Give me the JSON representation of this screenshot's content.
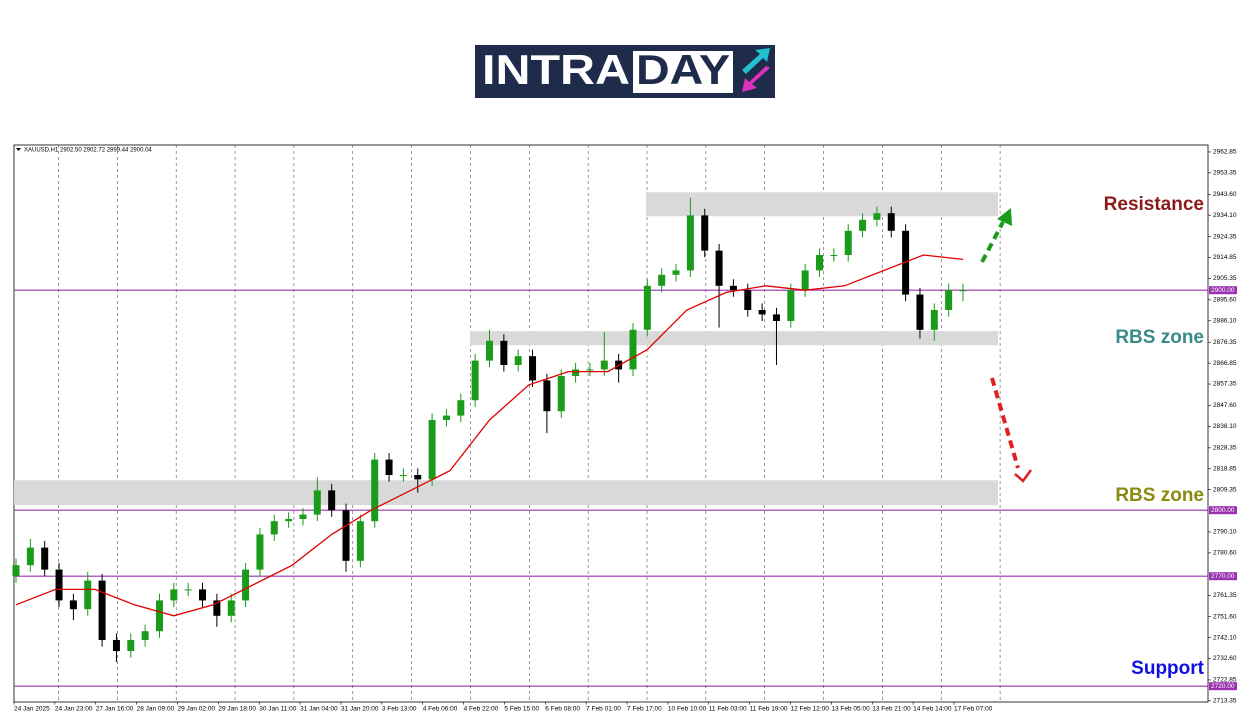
{
  "logo": {
    "left": "INTRA",
    "right": "DAY"
  },
  "chart_data": {
    "type": "candlestick",
    "title": "XAUUSD,H1 2902.50 2902.72 2899.44 2900.04",
    "up_color": "#1a9b1a",
    "down_color": "#000000",
    "ma_color": "#e00000",
    "level_color": "#9b30b0",
    "zone_color": "#d9d9d9",
    "ylim": [
      2713,
      2966
    ],
    "yticks": [
      2962.85,
      2953.35,
      {
        "value": 2943.6,
        "label": "2943.60"
      },
      {
        "value": 2934.1,
        "label": "2934.10"
      },
      2924.35,
      2914.85,
      2905.35,
      {
        "value": 2895.6,
        "label": "2895.60"
      },
      {
        "value": 2886.1,
        "label": "2886.10"
      },
      2876.35,
      2866.85,
      2857.35,
      {
        "value": 2847.6,
        "label": "2847.60"
      },
      {
        "value": 2838.1,
        "label": "2838.10"
      },
      2828.35,
      2818.85,
      2809.35,
      {
        "value": 2790.1,
        "label": "2790.10"
      },
      {
        "value": 2780.6,
        "label": "2780.60"
      },
      2761.35,
      {
        "value": 2751.6,
        "label": "2751.60"
      },
      {
        "value": 2742.1,
        "label": "2742.10"
      },
      {
        "value": 2732.6,
        "label": "2732.60"
      },
      2722.85,
      2713.35
    ],
    "x_labels": [
      "24 Jan 2025",
      "24 Jan 23:00",
      "27 Jan 16:00",
      "28 Jan 09:00",
      "29 Jan 02:00",
      "29 Jan 18:00",
      "30 Jan 11:00",
      "31 Jan 04:00",
      "31 Jan 20:00",
      "3 Feb 13:00",
      "4 Feb 06:00",
      "4 Feb 22:00",
      "5 Feb 15:00",
      "6 Feb 08:00",
      "7 Feb 01:00",
      "7 Feb 17:00",
      "10 Feb 10:00",
      "11 Feb 03:00",
      "11 Feb 19:00",
      "12 Feb 12:00",
      "13 Feb 05:00",
      "13 Feb 21:00",
      "14 Feb 14:00",
      "17 Feb 07:00"
    ],
    "open": [
      2770,
      2775,
      2783,
      2773,
      2759,
      2755,
      2768,
      2741,
      2736,
      2741,
      2745,
      2759,
      2764,
      2764,
      2759,
      2752,
      2759,
      2773,
      2789,
      2795,
      2796,
      2798,
      2809,
      2800,
      2777,
      2795,
      2823,
      2816,
      2816,
      2814,
      2841,
      2843,
      2850,
      2868,
      2877,
      2866,
      2870,
      2859,
      2845,
      2861,
      2864,
      2864,
      2868,
      2864,
      2882,
      2902,
      2907,
      2909,
      2934,
      2918,
      2902,
      2900,
      2891,
      2889,
      2886,
      2900,
      2909,
      2916,
      2916,
      2927,
      2932,
      2935,
      2927,
      2898,
      2882,
      2891,
      2900
    ],
    "high": [
      2778,
      2787,
      2786,
      2776,
      2762,
      2772,
      2771,
      2744,
      2744,
      2748,
      2762,
      2767,
      2767,
      2767,
      2762,
      2762,
      2776,
      2792,
      2798,
      2799,
      2801,
      2815,
      2812,
      2803,
      2798,
      2826,
      2826,
      2819,
      2819,
      2844,
      2846,
      2853,
      2871,
      2882,
      2880,
      2873,
      2873,
      2862,
      2864,
      2867,
      2867,
      2881,
      2871,
      2885,
      2905,
      2910,
      2912,
      2942,
      2937,
      2921,
      2905,
      2903,
      2894,
      2892,
      2903,
      2912,
      2919,
      2919,
      2930,
      2935,
      2938,
      2938,
      2930,
      2901,
      2894,
      2903,
      2903
    ],
    "low": [
      2767,
      2772,
      2770,
      2756,
      2750,
      2752,
      2738,
      2731,
      2733,
      2738,
      2742,
      2756,
      2761,
      2756,
      2747,
      2749,
      2756,
      2770,
      2786,
      2792,
      2793,
      2795,
      2797,
      2772,
      2774,
      2792,
      2813,
      2813,
      2808,
      2811,
      2838,
      2840,
      2847,
      2865,
      2863,
      2863,
      2856,
      2835,
      2842,
      2858,
      2861,
      2861,
      2858,
      2861,
      2879,
      2899,
      2904,
      2906,
      2915,
      2883,
      2897,
      2888,
      2886,
      2866,
      2883,
      2897,
      2906,
      2913,
      2913,
      2924,
      2929,
      2924,
      2895,
      2878,
      2877,
      2888,
      2895
    ],
    "close": [
      2775,
      2783,
      2773,
      2759,
      2755,
      2768,
      2741,
      2736,
      2741,
      2745,
      2759,
      2764,
      2764,
      2759,
      2752,
      2759,
      2773,
      2789,
      2795,
      2796,
      2798,
      2809,
      2800,
      2777,
      2795,
      2823,
      2816,
      2816,
      2814,
      2841,
      2843,
      2850,
      2868,
      2877,
      2866,
      2870,
      2859,
      2845,
      2861,
      2864,
      2864,
      2868,
      2864,
      2882,
      2902,
      2907,
      2909,
      2934,
      2918,
      2902,
      2900,
      2891,
      2889,
      2886,
      2900,
      2909,
      2916,
      2916,
      2927,
      2932,
      2935,
      2927,
      2898,
      2882,
      2891,
      2900,
      2900
    ],
    "ma": [
      2757,
      2764,
      2764,
      2757,
      2752,
      2757,
      2766,
      2775,
      2789,
      2800,
      2809,
      2818,
      2841,
      2857,
      2863,
      2863,
      2873,
      2891,
      2899,
      2902,
      2900,
      2902,
      2909,
      2916,
      2914
    ],
    "levels": [
      {
        "value": 2900,
        "label": "2900.00"
      },
      {
        "value": 2800,
        "label": "2800.00"
      },
      {
        "value": 2770,
        "label": "2770.00"
      },
      {
        "value": 2720,
        "label": "2720.00"
      }
    ],
    "zones": [
      {
        "from": 2933.6,
        "to": 2944.5
      },
      {
        "from": 2875,
        "to": 2881.4
      },
      {
        "from": 2802.3,
        "to": 2813.6
      }
    ],
    "annotations": [
      {
        "text": "Resistance",
        "color": "#8b1a1a"
      },
      {
        "text": "RBS zone",
        "color": "#3a8a8a"
      },
      {
        "text": "RBS zone",
        "color": "#8a8a10"
      },
      {
        "text": "Support",
        "color": "#1010e0"
      }
    ]
  }
}
